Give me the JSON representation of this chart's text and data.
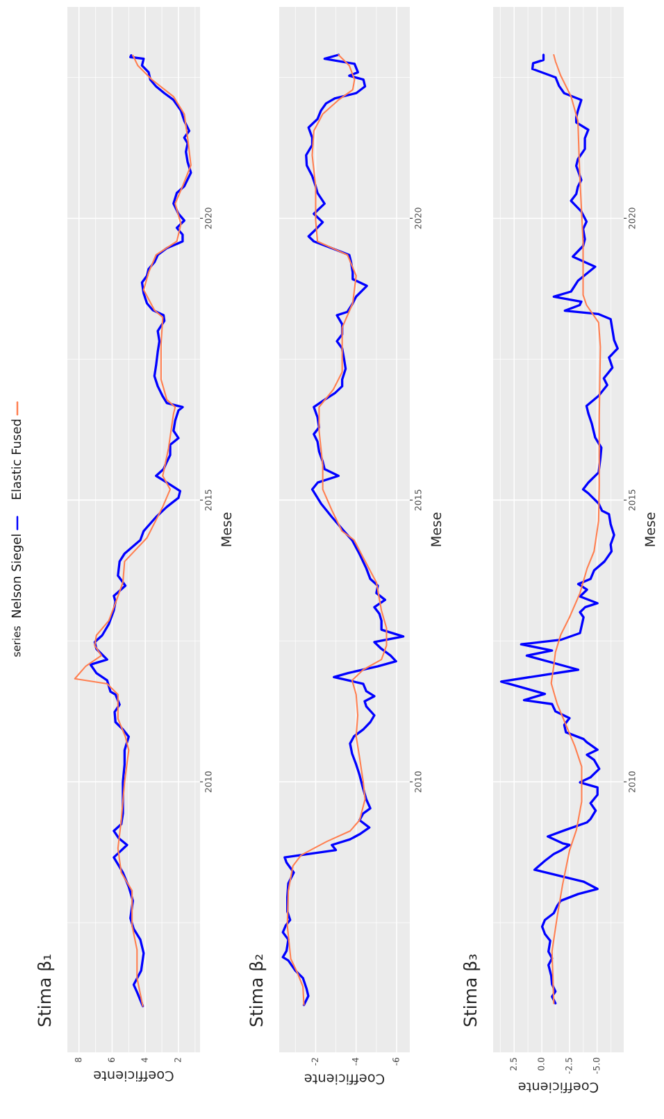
{
  "chart_data": [
    {
      "type": "line",
      "title": "Stima β₁",
      "xlabel": "Coefficiente",
      "ylabel": "Mese",
      "legend": "left",
      "legend_title": "series",
      "grid": true,
      "ylim": [
        2005.2,
        2023.75
      ],
      "yticks": [
        {
          "value": 2007.5,
          "label": null
        },
        2010,
        {
          "value": 2012.5,
          "label": null
        },
        2015,
        {
          "value": 2017.5,
          "label": null
        },
        2020,
        {
          "value": 2022.5,
          "label": null
        }
      ],
      "xlim": [
        8.7,
        0.7
      ],
      "xticks": [
        {
          "value": 1,
          "label": null
        },
        2,
        {
          "value": 3,
          "label": null
        },
        4,
        {
          "value": 5,
          "label": null
        },
        6,
        {
          "value": 7,
          "label": null
        },
        8
      ],
      "series": [
        {
          "name": "Nelson Siegel",
          "color": "#0000ff",
          "values": [
            2006.02,
            2006.27,
            2006.4,
            2006.65,
            2006.96,
            2007.2,
            2007.39,
            2007.58,
            2007.89,
            2008.14,
            2008.39,
            2008.66,
            2008.88,
            2009.0,
            2009.13,
            2009.25,
            2009.44,
            2009.69,
            2010.0,
            2010.31,
            2010.56,
            2010.8,
            2010.93,
            2011.06,
            2011.24,
            2011.37,
            2011.55,
            2011.6,
            2011.8,
            2011.93,
            2012.08,
            2012.17,
            2012.36,
            2012.48,
            2012.6,
            2012.8,
            2013.04,
            2013.2,
            2013.3,
            2013.48,
            2013.66,
            2013.91,
            2014.05,
            2014.29,
            2014.45,
            2014.7,
            2014.88,
            2015.04,
            2015.16,
            2015.31,
            2015.43,
            2015.55,
            2015.68,
            2015.8,
            2015.98,
            2016.1,
            2016.23,
            2016.41,
            2016.59,
            2016.65,
            2016.72,
            2016.84,
            2017.02,
            2017.2,
            2017.39,
            2017.63,
            2017.82,
            2018.0,
            2018.18,
            2018.28,
            2018.37,
            2018.49,
            2018.67,
            2018.86,
            2018.98,
            2019.1,
            2019.22,
            2019.35,
            2019.47,
            2019.59,
            2019.71,
            2019.83,
            2019.96,
            2020.08,
            2020.26,
            2020.45,
            2020.57,
            2020.81,
            2021.0,
            2021.18,
            2021.33,
            2021.43,
            2021.55,
            2021.73,
            2021.91,
            2022.1,
            2022.22,
            2022.34,
            2022.46,
            2022.59,
            2022.71,
            2022.83,
            2022.86,
            2022.89
          ],
          "x": [
            4.15,
            4.5,
            4.7,
            4.25,
            4.1,
            4.3,
            4.7,
            4.9,
            4.75,
            5.0,
            5.35,
            5.9,
            5.1,
            5.6,
            5.9,
            5.45,
            5.35,
            5.35,
            5.35,
            5.25,
            5.25,
            5.0,
            5.35,
            5.8,
            5.85,
            5.55,
            5.8,
            6.1,
            6.3,
            6.95,
            7.3,
            6.3,
            6.95,
            7.05,
            6.6,
            6.2,
            5.9,
            5.8,
            5.9,
            5.2,
            5.65,
            5.55,
            5.25,
            4.3,
            4.1,
            3.35,
            2.7,
            2.0,
            1.9,
            2.7,
            3.35,
            2.9,
            2.7,
            2.5,
            2.5,
            2.0,
            2.3,
            2.2,
            2.0,
            1.75,
            2.7,
            2.95,
            3.25,
            3.45,
            3.35,
            3.25,
            3.15,
            3.25,
            2.85,
            2.9,
            3.55,
            3.9,
            4.1,
            4.2,
            3.9,
            3.8,
            3.45,
            3.25,
            2.7,
            1.75,
            1.75,
            2.1,
            1.65,
            2.0,
            2.3,
            2.1,
            1.65,
            1.25,
            1.45,
            1.55,
            1.45,
            1.65,
            1.35,
            1.65,
            1.85,
            2.3,
            2.85,
            3.35,
            3.7,
            3.8,
            4.2,
            4.1,
            4.9,
            4.85
          ]
        },
        {
          "name": "Elastic Fused",
          "color": "#ff7f50",
          "values": [
            2006.02,
            2006.52,
            2007.02,
            2007.45,
            2008.07,
            2008.39,
            2008.82,
            2009.32,
            2010.0,
            2010.56,
            2010.8,
            2011.12,
            2011.55,
            2011.74,
            2011.83,
            2012.05,
            2012.24,
            2012.42,
            2012.6,
            2012.86,
            2013.17,
            2013.54,
            2013.91,
            2014.33,
            2014.88,
            2015.19,
            2015.43,
            2015.92,
            2016.53,
            2016.65,
            2016.78,
            2017.14,
            2017.76,
            2018.24,
            2018.37,
            2018.73,
            2019.04,
            2019.35,
            2019.59,
            2019.9,
            2020.26,
            2020.57,
            2020.94,
            2021.43,
            2021.85,
            2022.16,
            2022.46,
            2022.71,
            2022.89
          ],
          "x": [
            4.15,
            4.5,
            4.5,
            4.8,
            4.8,
            5.45,
            5.65,
            5.45,
            5.25,
            5.0,
            5.2,
            5.65,
            5.65,
            6.3,
            8.25,
            7.6,
            6.65,
            7.05,
            6.95,
            6.2,
            5.8,
            5.35,
            5.25,
            3.9,
            2.95,
            2.5,
            2.95,
            2.6,
            2.3,
            2.2,
            2.7,
            3.05,
            3.05,
            2.95,
            3.45,
            4.1,
            3.8,
            3.35,
            2.1,
            1.85,
            2.2,
            1.75,
            1.25,
            1.45,
            1.65,
            2.3,
            3.6,
            4.45,
            4.75
          ]
        }
      ]
    },
    {
      "type": "line",
      "title": "Stima β₂",
      "xlabel": "Coefficiente",
      "ylabel": "Mese",
      "grid": true,
      "ylim": [
        2005.2,
        2023.75
      ],
      "yticks": [
        {
          "value": 2007.5,
          "label": null
        },
        2010,
        {
          "value": 2012.5,
          "label": null
        },
        2015,
        {
          "value": 2017.5,
          "label": null
        },
        2020,
        {
          "value": 2022.5,
          "label": null
        }
      ],
      "xlim": [
        -0.2,
        -6.65
      ],
      "xticks": [
        -6,
        {
          "value": -5,
          "label": null
        },
        -4,
        {
          "value": -3,
          "label": null
        },
        -2,
        {
          "value": -1,
          "label": null
        }
      ],
      "series": [
        {
          "color": "#0000ff",
          "values": [
            2006.04,
            2006.2,
            2006.33,
            2006.52,
            2006.65,
            2006.83,
            2006.89,
            2007.0,
            2007.2,
            2007.33,
            2007.45,
            2007.55,
            2007.7,
            2007.95,
            2008.2,
            2008.39,
            2008.57,
            2008.66,
            2008.79,
            2008.88,
            2008.98,
            2009.07,
            2009.19,
            2009.32,
            2009.44,
            2009.53,
            2009.69,
            2009.94,
            2010.12,
            2010.31,
            2010.5,
            2010.68,
            2010.81,
            2010.93,
            2011.06,
            2011.18,
            2011.34,
            2011.43,
            2011.52,
            2011.61,
            2011.74,
            2011.86,
            2011.93,
            2012.05,
            2012.14,
            2012.24,
            2012.36,
            2012.48,
            2012.58,
            2012.7,
            2012.86,
            2012.98,
            2013.1,
            2013.23,
            2013.35,
            2013.48,
            2013.6,
            2013.79,
            2014.04,
            2014.29,
            2014.45,
            2014.7,
            2014.94,
            2015.19,
            2015.31,
            2015.43,
            2015.55,
            2015.68,
            2015.86,
            2016.04,
            2016.17,
            2016.29,
            2016.47,
            2016.65,
            2016.78,
            2016.9,
            2017.02,
            2017.14,
            2017.33,
            2017.51,
            2017.69,
            2017.82,
            2017.94,
            2018.12,
            2018.28,
            2018.34,
            2018.49,
            2018.61,
            2018.8,
            2018.92,
            2019.04,
            2019.22,
            2019.35,
            2019.47,
            2019.59,
            2019.68,
            2019.8,
            2019.93,
            2020.08,
            2020.26,
            2020.45,
            2020.57,
            2020.75,
            2020.94,
            2021.12,
            2021.3,
            2021.43,
            2021.61,
            2021.76,
            2021.91,
            2022.04,
            2022.13,
            2022.22,
            2022.34,
            2022.46,
            2022.53,
            2022.59,
            2022.74,
            2022.83,
            2022.9
          ],
          "x": [
            -1.42,
            -1.64,
            -1.55,
            -1.37,
            -1.0,
            -0.65,
            -0.38,
            -0.56,
            -0.65,
            -0.38,
            -0.52,
            -0.74,
            -0.6,
            -0.6,
            -0.65,
            -0.92,
            -0.56,
            -0.47,
            -3.0,
            -2.8,
            -3.7,
            -4.17,
            -4.65,
            -4.17,
            -4.35,
            -4.7,
            -4.5,
            -4.3,
            -4.17,
            -4.0,
            -3.8,
            -3.7,
            -3.9,
            -4.35,
            -4.7,
            -4.9,
            -4.5,
            -4.42,
            -4.9,
            -4.5,
            -4.35,
            -2.9,
            -3.6,
            -5.07,
            -5.97,
            -5.7,
            -5.25,
            -4.9,
            -6.33,
            -5.25,
            -5.25,
            -5.15,
            -4.9,
            -5.43,
            -5.0,
            -5.07,
            -4.7,
            -4.5,
            -4.17,
            -3.8,
            -3.4,
            -2.8,
            -2.26,
            -1.83,
            -2.1,
            -3.13,
            -2.44,
            -2.35,
            -2.17,
            -2.09,
            -1.91,
            -2.17,
            -2.09,
            -1.91,
            -2.44,
            -2.96,
            -3.31,
            -3.31,
            -3.48,
            -3.4,
            -3.31,
            -3.05,
            -3.31,
            -3.31,
            -3.05,
            -3.57,
            -3.83,
            -4.0,
            -4.53,
            -3.83,
            -3.83,
            -3.75,
            -3.66,
            -2.79,
            -1.91,
            -1.65,
            -2.0,
            -2.35,
            -1.91,
            -2.44,
            -2.09,
            -2.0,
            -1.83,
            -1.56,
            -1.53,
            -1.83,
            -1.83,
            -1.65,
            -2.09,
            -2.26,
            -2.52,
            -2.96,
            -4.0,
            -4.44,
            -4.36,
            -3.66,
            -4.09,
            -3.92,
            -2.44,
            -3.13
          ]
        },
        {
          "color": "#ff7f50",
          "values": [
            2006.04,
            2006.37,
            2006.61,
            2006.86,
            2007.45,
            2008.07,
            2008.51,
            2008.7,
            2008.94,
            2009.13,
            2009.32,
            2009.69,
            2010.0,
            2010.43,
            2010.81,
            2011.18,
            2011.55,
            2011.8,
            2011.99,
            2012.17,
            2012.42,
            2012.73,
            2013.04,
            2013.54,
            2013.98,
            2014.29,
            2014.45,
            2014.82,
            2015.19,
            2015.62,
            2016.23,
            2016.65,
            2016.96,
            2017.27,
            2018.06,
            2018.49,
            2018.98,
            2019.35,
            2019.59,
            2019.96,
            2020.57,
            2021.12,
            2021.55,
            2021.85,
            2022.1,
            2022.28,
            2022.46,
            2022.71,
            2022.9
          ],
          "x": [
            -1.42,
            -1.37,
            -1.1,
            -0.77,
            -0.6,
            -0.65,
            -0.88,
            -1.28,
            -2.54,
            -3.71,
            -4.17,
            -4.44,
            -4.35,
            -4.17,
            -4.0,
            -4.08,
            -4.0,
            -3.8,
            -4.35,
            -5.25,
            -5.5,
            -5.5,
            -5.25,
            -5.0,
            -4.35,
            -3.9,
            -3.3,
            -2.8,
            -2.35,
            -2.35,
            -2.17,
            -2.17,
            -2.87,
            -3.31,
            -3.31,
            -3.83,
            -4.0,
            -3.57,
            -2.09,
            -2.0,
            -2.0,
            -1.83,
            -1.91,
            -2.35,
            -3.13,
            -3.83,
            -3.92,
            -3.66,
            -3.13
          ]
        }
      ]
    },
    {
      "type": "line",
      "title": "Stima β₃",
      "xlabel": "Coefficiente",
      "ylabel": "Mese",
      "grid": true,
      "ylim": [
        2005.2,
        2023.75
      ],
      "yticks": [
        {
          "value": 2007.5,
          "label": null
        },
        2010,
        {
          "value": 2012.5,
          "label": null
        },
        2015,
        {
          "value": 2017.5,
          "label": null
        },
        2020,
        {
          "value": 2022.5,
          "label": null
        }
      ],
      "xlim": [
        4.4,
        -7.4
      ],
      "xticks": [
        {
          "value": -6.25,
          "label": null
        },
        {
          "value": -5,
          "label": "-5.0"
        },
        {
          "value": -3.75,
          "label": null
        },
        {
          "value": -2.5,
          "label": "-2.5"
        },
        {
          "value": -1.25,
          "label": null
        },
        {
          "value": 0,
          "label": "0.0"
        },
        {
          "value": 1.25,
          "label": null
        },
        2.5,
        {
          "value": 3.75,
          "label": null
        }
      ],
      "series": [
        {
          "color": "#0000ff",
          "values": [
            2006.07,
            2006.19,
            2006.28,
            2006.41,
            2006.56,
            2006.75,
            2006.87,
            2006.99,
            2007.18,
            2007.3,
            2007.43,
            2007.55,
            2007.67,
            2007.8,
            2007.89,
            2008.01,
            2008.1,
            2008.23,
            2008.44,
            2008.6,
            2008.72,
            2008.78,
            2008.88,
            2008.91,
            2009.03,
            2009.15,
            2009.28,
            2009.34,
            2009.49,
            2009.62,
            2009.77,
            2009.9,
            2009.99,
            2010.08,
            2010.23,
            2010.39,
            2010.48,
            2010.57,
            2010.7,
            2010.76,
            2010.88,
            2011.01,
            2011.13,
            2011.25,
            2011.38,
            2011.45,
            2011.56,
            2011.78,
            2011.99,
            2012.24,
            2012.33,
            2012.44,
            2012.52,
            2012.64,
            2012.77,
            2012.92,
            2013.01,
            2013.1,
            2013.17,
            2013.29,
            2013.41,
            2013.51,
            2013.6,
            2013.75,
            2013.91,
            2014.09,
            2014.21,
            2014.38,
            2014.57,
            2014.75,
            2014.81,
            2014.94,
            2015.12,
            2015.19,
            2015.31,
            2015.49,
            2015.74,
            2015.93,
            2015.99,
            2016.11,
            2016.23,
            2016.36,
            2016.54,
            2016.67,
            2016.85,
            2017.04,
            2017.16,
            2017.35,
            2017.53,
            2017.69,
            2017.84,
            2018.02,
            2018.21,
            2018.3,
            2018.36,
            2018.46,
            2018.52,
            2018.61,
            2018.7,
            2018.89,
            2019.14,
            2019.32,
            2019.51,
            2019.63,
            2019.81,
            2019.94,
            2020.12,
            2020.31,
            2020.43,
            2020.56,
            2020.68,
            2020.93,
            2021.05,
            2021.23,
            2021.42,
            2021.57,
            2021.7,
            2021.79,
            2021.91,
            2022.1,
            2022.22,
            2022.35,
            2022.5,
            2022.65,
            2022.75,
            2022.81,
            2022.9
          ],
          "x": [
            -1.23,
            -0.92,
            -1.23,
            -0.92,
            -0.85,
            -0.6,
            -0.92,
            -0.6,
            -0.76,
            -0.28,
            -0.03,
            -0.28,
            -1.08,
            -1.39,
            -1.71,
            -3.29,
            -5.03,
            -3.77,
            0.66,
            -0.28,
            -1.08,
            -1.71,
            -2.5,
            -1.87,
            -0.54,
            -2.18,
            -4.08,
            -4.4,
            -4.87,
            -4.4,
            -5.03,
            -5.03,
            -3.45,
            -4.4,
            -5.19,
            -4.72,
            -4.08,
            -5.03,
            -4.08,
            -3.77,
            -2.18,
            -2.03,
            -2.5,
            -1.23,
            -0.92,
            1.61,
            -0.28,
            3.67,
            -3.29,
            1.36,
            -0.92,
            1.87,
            -1.71,
            -3.45,
            -3.6,
            -3.77,
            -3.45,
            -3.92,
            -5.03,
            -3.45,
            -4.08,
            -3.29,
            -4.4,
            -4.72,
            -5.66,
            -6.3,
            -6.22,
            -6.53,
            -6.22,
            -6.07,
            -5.44,
            -5.13,
            -4.2,
            -3.73,
            -4.2,
            -5.13,
            -5.29,
            -5.38,
            -5.19,
            -4.82,
            -4.67,
            -4.51,
            -4.2,
            -4.04,
            -5.13,
            -5.91,
            -5.6,
            -6.38,
            -6.07,
            -6.85,
            -6.53,
            -6.38,
            -6.22,
            -5.13,
            -2.08,
            -3.42,
            -3.57,
            -1.08,
            -2.64,
            -3.26,
            -4.82,
            -2.8,
            -3.73,
            -3.89,
            -3.73,
            -4.04,
            -3.57,
            -2.64,
            -3.11,
            -3.26,
            -3.57,
            -3.11,
            -3.26,
            -3.89,
            -3.89,
            -4.2,
            -3.11,
            -3.11,
            -3.26,
            -3.57,
            -2.02,
            -1.55,
            -1.24,
            0.85,
            0.79,
            -0.15,
            -0.15
          ]
        },
        {
          "color": "#ff7f50",
          "values": [
            2006.07,
            2006.99,
            2007.61,
            2008.17,
            2008.78,
            2009.15,
            2009.65,
            2010.27,
            2010.64,
            2011.01,
            2011.38,
            2011.75,
            2012.06,
            2012.3,
            2012.61,
            2012.92,
            2013.35,
            2013.78,
            2014.09,
            2014.63,
            2015.25,
            2016.48,
            2017.72,
            2018.15,
            2018.46,
            2018.64,
            2019.57,
            2020.8,
            2021.73,
            2022.16,
            2022.53,
            2022.78,
            2022.9
          ],
          "x": [
            -1.08,
            -0.92,
            -1.39,
            -1.87,
            -2.5,
            -3.13,
            -3.6,
            -3.6,
            -2.97,
            -2.18,
            -1.39,
            -0.85,
            -1.08,
            -1.23,
            -1.71,
            -2.5,
            -3.45,
            -4.08,
            -4.72,
            -5.13,
            -5.19,
            -5.19,
            -5.29,
            -5.13,
            -4.04,
            -3.73,
            -3.73,
            -3.42,
            -3.26,
            -2.64,
            -1.71,
            -1.24,
            -1.08
          ]
        }
      ]
    }
  ]
}
